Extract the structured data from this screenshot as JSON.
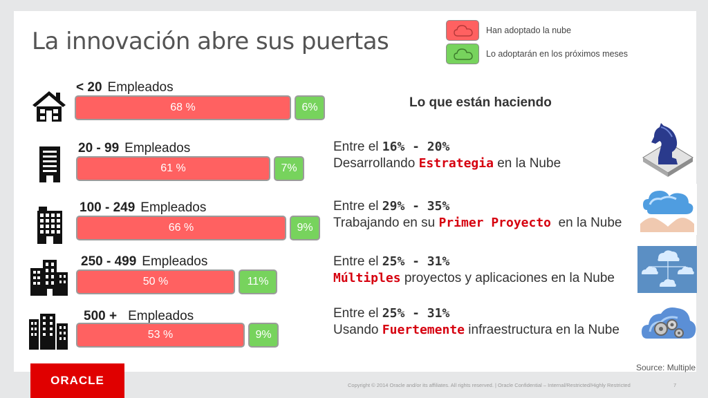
{
  "slide": {
    "title": "La innovación abre sus puertas",
    "legend": [
      {
        "label": "Han adoptado la nube",
        "color": "#ff6161"
      },
      {
        "label": "Lo adoptarán en los próximos  meses",
        "color": "#77d35d"
      }
    ],
    "section_heading": "Lo que están haciendo",
    "source": "Source: Multiple",
    "logo_text": "ORACLE",
    "footer": "Copyright © 2014 Oracle and/or its affiliates. All rights reserved.  |  Oracle Confidential – Internal/Restricted/Highly Restricted",
    "page_number": "7"
  },
  "chart_data": {
    "type": "bar",
    "unit_word": "Empleados",
    "categories": [
      "< 20",
      "20 - 99",
      "100 - 249",
      "250 - 499",
      "500 +"
    ],
    "series": [
      {
        "name": "Han adoptado la nube",
        "values": [
          68,
          61,
          66,
          50,
          53
        ],
        "labels": [
          "68 %",
          "61 %",
          "66 %",
          "50 %",
          "53 %"
        ],
        "color": "#ff6161"
      },
      {
        "name": "Lo adoptarán en los próximos  meses",
        "values": [
          6,
          7,
          9,
          11,
          9
        ],
        "labels": [
          "6%",
          "7%",
          "9%",
          "11%",
          "9%"
        ],
        "color": "#77d35d"
      }
    ]
  },
  "stats": [
    {
      "prefix": "Entre el ",
      "range": "16% - 20%",
      "pre": "Desarrollando ",
      "highlight": "Estrategia",
      "post": " en la Nube",
      "icon": "chess-knight-icon"
    },
    {
      "prefix": "Entre el ",
      "range": "29% - 35%",
      "pre": "Trabajando en su ",
      "highlight": "Primer Proyecto",
      "post": "  en la Nube",
      "icon": "cloud-in-hands-icon"
    },
    {
      "prefix": "Entre el ",
      "range": "25% - 31%",
      "pre": "",
      "highlight": "Múltiples",
      "post": " proyectos y aplicaciones en la Nube",
      "icon": "multiple-clouds-icon"
    },
    {
      "prefix": "Entre el ",
      "range": "25% - 31%",
      "pre": "Usando ",
      "highlight": "Fuertemente",
      "post": " infraestructura en la Nube",
      "icon": "cloud-gears-icon"
    }
  ]
}
